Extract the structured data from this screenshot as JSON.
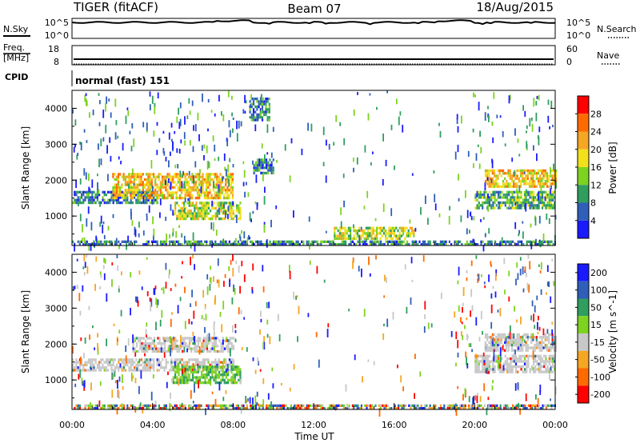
{
  "header": {
    "station": "TIGER (fitACF)",
    "beam": "Beam 07",
    "date": "18/Aug/2015"
  },
  "nsky_panel": {
    "left_label": "N.Sky",
    "right_label": "N.Search",
    "left_ticks": [
      "10^5",
      "10^0"
    ],
    "right_ticks": [
      "10^5",
      "10^0"
    ]
  },
  "freq_panel": {
    "left_label_line1": "Freq.",
    "left_label_line2": "[MHz]",
    "right_label": "Nave",
    "left_ticks": [
      "18",
      "8"
    ],
    "right_ticks": [
      "60",
      "0"
    ]
  },
  "cpid_panel": {
    "label": "CPID",
    "text": "normal (fast) 151"
  },
  "chart_data": [
    {
      "type": "heatmap",
      "name": "power",
      "ylabel": "Slant Range [km]",
      "ylim": [
        180,
        4500
      ],
      "yticks": [
        1000,
        2000,
        3000,
        4000
      ],
      "colorbar_label": "Power [dB]",
      "colorbar_ticks": [
        4,
        8,
        12,
        16,
        20,
        24,
        28
      ],
      "colorbar_range": [
        0,
        32
      ],
      "colors": [
        "#1a1aff",
        "#2f5fb8",
        "#2f9e5f",
        "#7ed321",
        "#f2e01b",
        "#f5a623",
        "#ff6a00",
        "#ff0000"
      ],
      "regions": [
        {
          "t": [
            0.0,
            4.2
          ],
          "r": [
            1350,
            1700
          ],
          "level": 12
        },
        {
          "t": [
            2.0,
            8.0
          ],
          "r": [
            1500,
            2200
          ],
          "level": 24
        },
        {
          "t": [
            5.0,
            8.4
          ],
          "r": [
            900,
            1400
          ],
          "level": 20
        },
        {
          "t": [
            0.0,
            24.0
          ],
          "r": [
            180,
            320
          ],
          "level": 10
        },
        {
          "t": [
            9.0,
            10.0
          ],
          "r": [
            2200,
            2600
          ],
          "level": 12
        },
        {
          "t": [
            8.8,
            9.8
          ],
          "r": [
            3700,
            4300
          ],
          "level": 12
        },
        {
          "t": [
            20.5,
            24.0
          ],
          "r": [
            1800,
            2300
          ],
          "level": 24
        },
        {
          "t": [
            20.0,
            24.0
          ],
          "r": [
            1200,
            1700
          ],
          "level": 14
        },
        {
          "t": [
            13.0,
            17.0
          ],
          "r": [
            400,
            700
          ],
          "level": 18
        }
      ]
    },
    {
      "type": "heatmap",
      "name": "velocity",
      "ylabel": "Slant Range [km]",
      "xlabel": "Time UT",
      "ylim": [
        180,
        4500
      ],
      "yticks": [
        1000,
        2000,
        3000,
        4000
      ],
      "xticks": [
        "00:00",
        "04:00",
        "08:00",
        "12:00",
        "16:00",
        "20:00",
        "00:00"
      ],
      "xlim_hours": [
        0,
        24
      ],
      "colorbar_label": "Velocity [m s^-1]",
      "colorbar_ticks": [
        "200",
        "100",
        "50",
        "15",
        "-15",
        "-50",
        "-100",
        "-200"
      ],
      "colors": [
        "#1a1aff",
        "#2f5fb8",
        "#2f9e5f",
        "#7ed321",
        "#c8c8c8",
        "#f5a623",
        "#ff6a00",
        "#ff0000"
      ],
      "regions": [
        {
          "t": [
            0.0,
            8.0
          ],
          "r": [
            1300,
            1600
          ],
          "level": "gray"
        },
        {
          "t": [
            3.0,
            8.0
          ],
          "r": [
            1800,
            2200
          ],
          "level": "gray"
        },
        {
          "t": [
            5.0,
            8.4
          ],
          "r": [
            900,
            1400
          ],
          "level": "green"
        },
        {
          "t": [
            0.0,
            24.0
          ],
          "r": [
            180,
            320
          ],
          "level": "mixed"
        },
        {
          "t": [
            20.5,
            24.0
          ],
          "r": [
            1800,
            2300
          ],
          "level": "gray"
        },
        {
          "t": [
            20.0,
            24.0
          ],
          "r": [
            1200,
            1700
          ],
          "level": "gray"
        }
      ]
    }
  ]
}
